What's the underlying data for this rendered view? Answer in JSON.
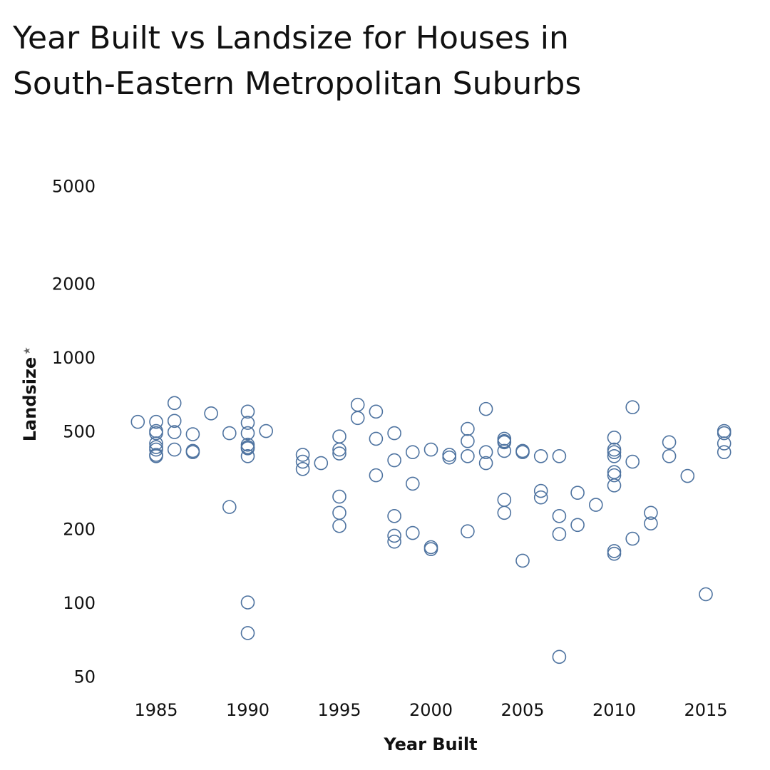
{
  "chart_data": {
    "type": "scatter",
    "title_lines": [
      "Year Built vs Landsize for Houses in",
      "South-Eastern Metropolitan Suburbs"
    ],
    "xlabel": "Year Built",
    "ylabel": "Landsize",
    "ylabel_marker": "★",
    "y_scale": "log",
    "xlim": [
      1982,
      2017
    ],
    "ylim": [
      40,
      7000
    ],
    "x_ticks": [
      1985,
      1990,
      1995,
      2000,
      2005,
      2010,
      2015
    ],
    "y_ticks": [
      50,
      100,
      200,
      500,
      1000,
      2000,
      5000
    ],
    "grid": false,
    "marker": "hollow-circle",
    "marker_color": "#4e73a0",
    "points": [
      [
        1984,
        545
      ],
      [
        1985,
        545
      ],
      [
        1985,
        500
      ],
      [
        1985,
        490
      ],
      [
        1985,
        445
      ],
      [
        1985,
        430
      ],
      [
        1985,
        420
      ],
      [
        1985,
        400
      ],
      [
        1985,
        395
      ],
      [
        1986,
        650
      ],
      [
        1986,
        550
      ],
      [
        1986,
        495
      ],
      [
        1986,
        420
      ],
      [
        1987,
        485
      ],
      [
        1987,
        415
      ],
      [
        1987,
        410
      ],
      [
        1988,
        590
      ],
      [
        1989,
        490
      ],
      [
        1989,
        245
      ],
      [
        1990,
        600
      ],
      [
        1990,
        540
      ],
      [
        1990,
        490
      ],
      [
        1990,
        440
      ],
      [
        1990,
        430
      ],
      [
        1990,
        425
      ],
      [
        1990,
        395
      ],
      [
        1990,
        100
      ],
      [
        1990,
        75
      ],
      [
        1991,
        500
      ],
      [
        1993,
        400
      ],
      [
        1993,
        375
      ],
      [
        1993,
        350
      ],
      [
        1994,
        370
      ],
      [
        1995,
        475
      ],
      [
        1995,
        420
      ],
      [
        1995,
        405
      ],
      [
        1995,
        270
      ],
      [
        1995,
        232
      ],
      [
        1995,
        205
      ],
      [
        1996,
        640
      ],
      [
        1996,
        565
      ],
      [
        1997,
        600
      ],
      [
        1997,
        465
      ],
      [
        1997,
        330
      ],
      [
        1998,
        490
      ],
      [
        1998,
        380
      ],
      [
        1998,
        225
      ],
      [
        1998,
        187
      ],
      [
        1998,
        177
      ],
      [
        1999,
        410
      ],
      [
        1999,
        305
      ],
      [
        1999,
        192
      ],
      [
        2000,
        420
      ],
      [
        2000,
        168
      ],
      [
        2000,
        165
      ],
      [
        2001,
        400
      ],
      [
        2001,
        390
      ],
      [
        2002,
        510
      ],
      [
        2002,
        455
      ],
      [
        2002,
        395
      ],
      [
        2002,
        195
      ],
      [
        2003,
        615
      ],
      [
        2003,
        410
      ],
      [
        2003,
        370
      ],
      [
        2004,
        465
      ],
      [
        2004,
        455
      ],
      [
        2004,
        450
      ],
      [
        2004,
        415
      ],
      [
        2004,
        262
      ],
      [
        2004,
        232
      ],
      [
        2005,
        415
      ],
      [
        2005,
        410
      ],
      [
        2005,
        148
      ],
      [
        2006,
        395
      ],
      [
        2006,
        285
      ],
      [
        2006,
        268
      ],
      [
        2007,
        395
      ],
      [
        2007,
        225
      ],
      [
        2007,
        190
      ],
      [
        2007,
        60
      ],
      [
        2008,
        280
      ],
      [
        2008,
        207
      ],
      [
        2009,
        250
      ],
      [
        2010,
        470
      ],
      [
        2010,
        420
      ],
      [
        2010,
        410
      ],
      [
        2010,
        395
      ],
      [
        2010,
        340
      ],
      [
        2010,
        330
      ],
      [
        2010,
        300
      ],
      [
        2010,
        162
      ],
      [
        2010,
        158
      ],
      [
        2011,
        625
      ],
      [
        2011,
        375
      ],
      [
        2011,
        182
      ],
      [
        2012,
        232
      ],
      [
        2012,
        210
      ],
      [
        2013,
        450
      ],
      [
        2013,
        395
      ],
      [
        2014,
        328
      ],
      [
        2015,
        108
      ],
      [
        2016,
        500
      ],
      [
        2016,
        490
      ],
      [
        2016,
        445
      ],
      [
        2016,
        410
      ]
    ]
  }
}
